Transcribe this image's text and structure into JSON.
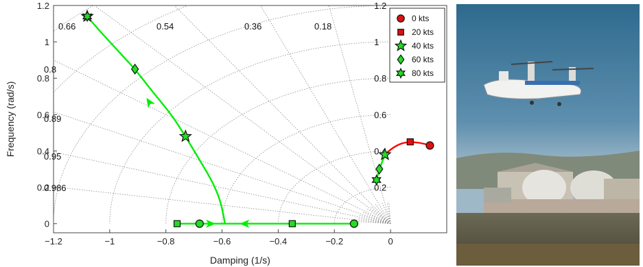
{
  "chart_data": {
    "type": "scatter",
    "title": "",
    "xlabel": "Damping (1/s)",
    "ylabel": "Frequency (rad/s)",
    "xlim": [
      -1.2,
      0.2
    ],
    "ylim": [
      -0.05,
      1.2
    ],
    "xticks": [
      "−1.2",
      "−1",
      "−0.8",
      "−0.6",
      "−0.4",
      "−0.2",
      "0"
    ],
    "yticks": [
      "0",
      "0.2",
      "0.4",
      "0.6",
      "0.8",
      "1",
      "1.2"
    ],
    "grid": "s-plane (constant damping ratio rays and natural frequency arcs)",
    "damping_ratio_labels": [
      "0.66",
      "0.54",
      "0.36",
      "0.18",
      "0.8",
      "0.89",
      "0.95",
      "0.986"
    ],
    "natural_frequency_labels": [
      "1.2",
      "1",
      "0.8",
      "0.6",
      "0.4",
      "0.2"
    ],
    "legend_position": "top-right",
    "legend": [
      {
        "name": "0 kts",
        "marker": "circle"
      },
      {
        "name": "20 kts",
        "marker": "square"
      },
      {
        "name": "40 kts",
        "marker": "star5"
      },
      {
        "name": "60 kts",
        "marker": "diamond"
      },
      {
        "name": "80 kts",
        "marker": "star6"
      }
    ],
    "series": [
      {
        "name": "0 kts",
        "marker": "circle",
        "x": [
          0.14,
          -0.13,
          -0.68
        ],
        "y": [
          0.43,
          0.0,
          0.0
        ]
      },
      {
        "name": "20 kts",
        "marker": "square",
        "x": [
          0.07,
          -0.35,
          -0.76
        ],
        "y": [
          0.45,
          0.0,
          0.0
        ]
      },
      {
        "name": "40 kts",
        "marker": "star5",
        "x": [
          -0.02,
          -0.73,
          -1.08
        ],
        "y": [
          0.38,
          0.48,
          1.14
        ]
      },
      {
        "name": "60 kts",
        "marker": "diamond",
        "x": [
          -0.04,
          -0.91
        ],
        "y": [
          0.3,
          0.85
        ]
      },
      {
        "name": "80 kts",
        "marker": "star6",
        "x": [
          -0.05,
          -1.08
        ],
        "y": [
          0.24,
          1.14
        ]
      }
    ],
    "loci": [
      {
        "color": "#ff0000",
        "x": [
          -0.02,
          0.0,
          0.04,
          0.08,
          0.12,
          0.14
        ],
        "y": [
          0.38,
          0.41,
          0.445,
          0.45,
          0.44,
          0.43
        ]
      },
      {
        "color": "#00ee00",
        "x": [
          -0.05,
          -0.045,
          -0.04,
          -0.02
        ],
        "y": [
          0.24,
          0.27,
          0.3,
          0.38
        ]
      },
      {
        "color": "#00ee00",
        "x": [
          -0.76,
          -0.59,
          -0.13
        ],
        "y": [
          0.0,
          0.0,
          0.0
        ]
      },
      {
        "color": "#00ee00",
        "x": [
          -0.59,
          -0.6,
          -0.63,
          -0.68,
          -0.73,
          -0.78,
          -0.85,
          -0.91,
          -0.97,
          -1.03,
          -1.08
        ],
        "y": [
          0.0,
          0.1,
          0.22,
          0.35,
          0.48,
          0.6,
          0.73,
          0.85,
          0.95,
          1.05,
          1.14
        ]
      }
    ],
    "colors": {
      "marker_fill_0_20": "#dd1111",
      "marker_fill_40_80": "#22dd22",
      "locus_green": "#00ee00",
      "locus_red": "#ff0000"
    }
  },
  "photo": {
    "name": "tiltrotor aircraft photo"
  }
}
